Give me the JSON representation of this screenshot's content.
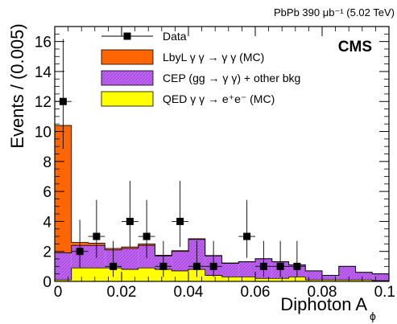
{
  "chart_data": {
    "type": "histogram",
    "title": "",
    "header_right": "PbPb 390 μb⁻¹ (5.02 TeV)",
    "experiment_label": "CMS",
    "xlabel": "Diphoton A",
    "xlabel_subscript": "ϕ",
    "ylabel": "Events / (0.005)",
    "xlim": [
      0,
      0.1
    ],
    "ylim": [
      0,
      17
    ],
    "x_ticks": [
      "0",
      "0.02",
      "0.04",
      "0.06",
      "0.08",
      "0.1"
    ],
    "y_ticks": [
      "0",
      "2",
      "4",
      "6",
      "8",
      "10",
      "12",
      "14",
      "16"
    ],
    "bin_edges": [
      0,
      0.005,
      0.01,
      0.015,
      0.02,
      0.025,
      0.03,
      0.035,
      0.04,
      0.045,
      0.05,
      0.055,
      0.06,
      0.065,
      0.07,
      0.075,
      0.08,
      0.085,
      0.09,
      0.095,
      0.1
    ],
    "stack": [
      {
        "name": "QED γ γ → e⁺e⁻ (MC)",
        "color": "#ffff00",
        "values": [
          0.1,
          0.9,
          0.9,
          0.9,
          0.8,
          0.9,
          0.8,
          0.7,
          0.8,
          0.4,
          0.3,
          0.3,
          0.2,
          0.2,
          0.3,
          0.1,
          0.1,
          0.1,
          0.1,
          0.05
        ]
      },
      {
        "name": "CEP (gg → γ γ) + other bkg",
        "color": "#c065f0",
        "values": [
          1.8,
          1.5,
          1.5,
          1.2,
          1.4,
          1.5,
          0.9,
          1.3,
          2.0,
          1.3,
          0.9,
          1.0,
          1.3,
          1.1,
          0.8,
          0.6,
          0.3,
          0.9,
          0.5,
          0.45
        ]
      },
      {
        "name": "LbyL γ γ → γ γ (MC)",
        "color": "#ff6600",
        "values": [
          8.5,
          0.2,
          0.15,
          0.1,
          0.1,
          0.1,
          0.05,
          0.05,
          0.05,
          0.03,
          0.03,
          0.02,
          0.02,
          0.02,
          0.01,
          0.01,
          0.01,
          0.01,
          0.01,
          0.01
        ]
      }
    ],
    "data": {
      "name": "Data",
      "color": "#000000",
      "x": [
        0.0025,
        0.0075,
        0.0125,
        0.0175,
        0.0225,
        0.0275,
        0.0325,
        0.0375,
        0.0425,
        0.0475,
        0.0575,
        0.0625,
        0.0675,
        0.0725
      ],
      "y": [
        12,
        2,
        3,
        1,
        4,
        3,
        1,
        4,
        1,
        1,
        3,
        1,
        1,
        1
      ]
    },
    "legend_position": "top-center"
  }
}
